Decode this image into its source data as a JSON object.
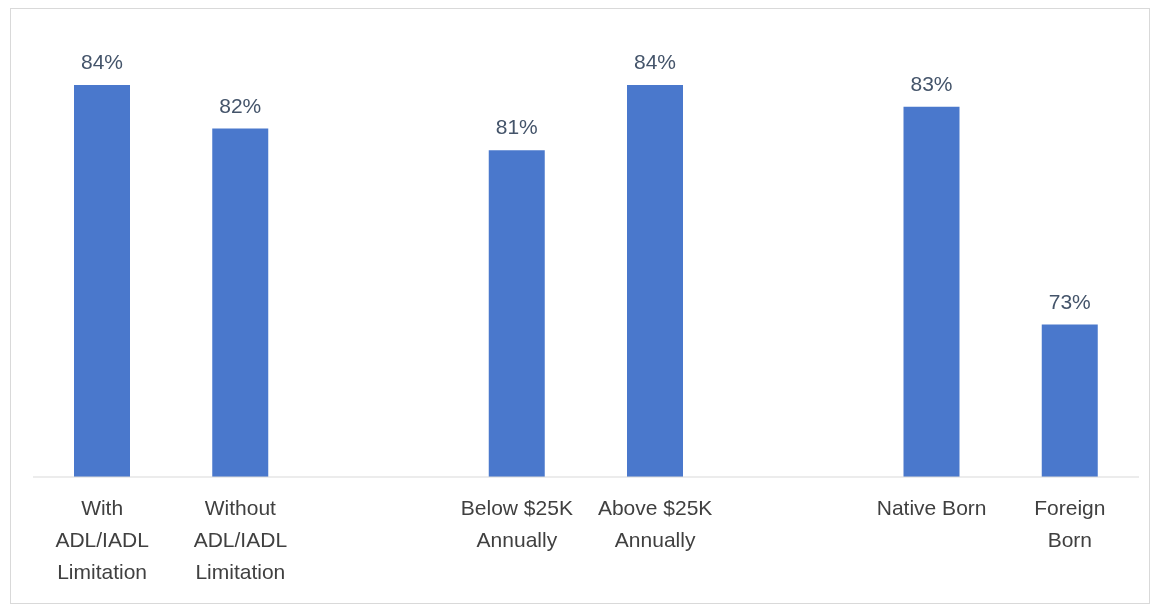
{
  "chart_data": {
    "type": "bar",
    "categories": [
      "With ADL/IADL Limitation",
      "Without ADL/IADL Limitation",
      null,
      "Below $25K Annually",
      "Above $25K Annually",
      null,
      "Native Born",
      "Foreign Born"
    ],
    "values": [
      84,
      82,
      null,
      81,
      84,
      null,
      83,
      73
    ],
    "value_labels": [
      "84%",
      "82%",
      null,
      "81%",
      "84%",
      null,
      "83%",
      "73%"
    ],
    "color": "#4a78cc",
    "ylim": [
      66,
      87.4
    ]
  }
}
